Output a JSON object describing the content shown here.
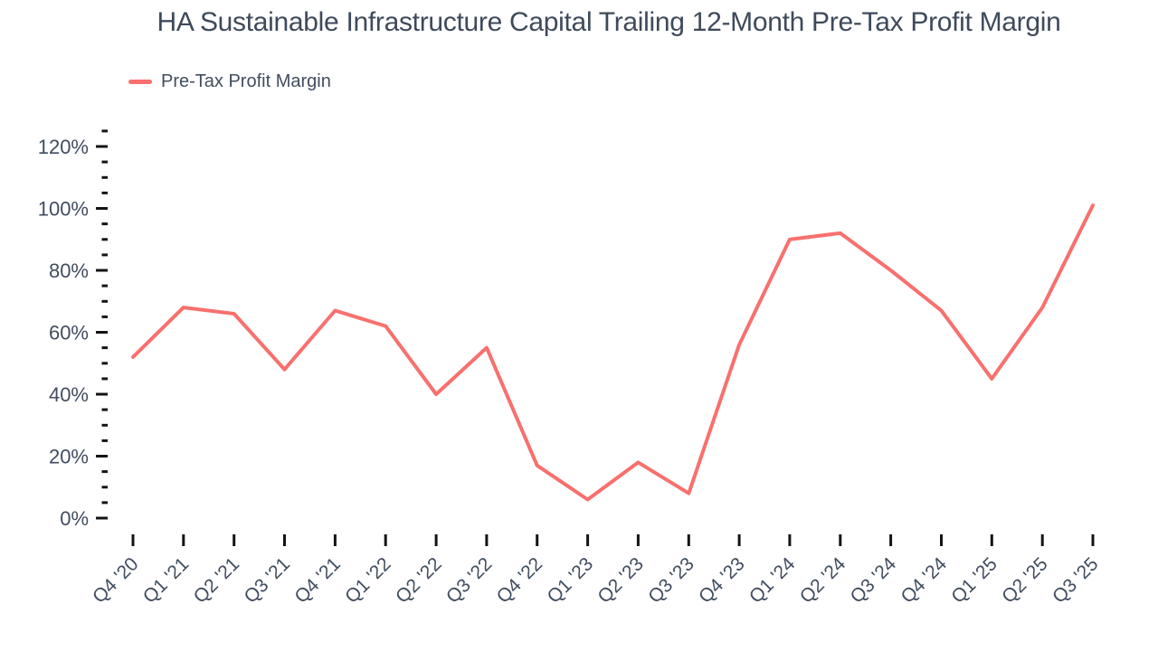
{
  "chart": {
    "legend_label": "Pre-Tax Profit Margin",
    "line_color": "#F8706E",
    "axis_text_color": "#414D5E",
    "tick_mark_color": "#141414",
    "background_color": "#FFFFFF"
  },
  "chart_data": {
    "type": "line",
    "title": "HA Sustainable Infrastructure Capital Trailing 12-Month Pre-Tax Profit Margin",
    "xlabel": "",
    "ylabel": "",
    "unit": "%",
    "categories": [
      "Q4 '20",
      "Q1 '21",
      "Q2 '21",
      "Q3 '21",
      "Q4 '21",
      "Q1 '22",
      "Q2 '22",
      "Q3 '22",
      "Q4 '22",
      "Q1 '23",
      "Q2 '23",
      "Q3 '23",
      "Q4 '23",
      "Q1 '24",
      "Q2 '24",
      "Q3 '24",
      "Q4 '24",
      "Q1 '25",
      "Q2 '25",
      "Q3 '25"
    ],
    "series": [
      {
        "name": "Pre-Tax Profit Margin",
        "color": "#F8706E",
        "values": [
          52,
          68,
          66,
          48,
          67,
          62,
          40,
          55,
          17,
          6,
          18,
          8,
          56,
          90,
          92,
          80,
          67,
          45,
          68,
          101
        ]
      }
    ],
    "ylim": [
      0,
      125
    ],
    "y_major_ticks": [
      0,
      20,
      40,
      60,
      80,
      100,
      120
    ],
    "y_minor_tick_step": 5,
    "y_tick_label_format": "{v}%",
    "grid": false,
    "markers": false,
    "legend_position": "top-left",
    "x_tick_label_rotation_deg": -45
  }
}
